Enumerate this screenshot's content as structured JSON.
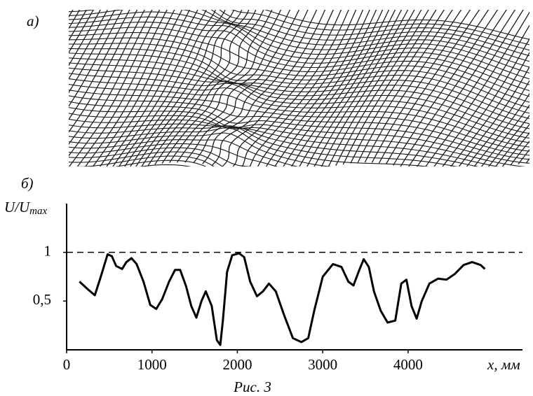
{
  "figure": {
    "panel_a_label": "а)",
    "panel_b_label": "б)",
    "caption": "Рис. 3"
  },
  "chart_data": {
    "type": "line",
    "y_label": {
      "main": "U/U",
      "sub": "max"
    },
    "x_label": "x, мм",
    "xlim": [
      0,
      5340
    ],
    "ylim": [
      0,
      1.5
    ],
    "xticks": [
      0,
      1000,
      2000,
      3000,
      4000
    ],
    "yticks": [
      {
        "value": 0.5,
        "label": "0,5"
      },
      1
    ],
    "reference_line": 1,
    "x": [
      150,
      250,
      330,
      400,
      480,
      530,
      580,
      650,
      700,
      760,
      820,
      900,
      980,
      1050,
      1120,
      1200,
      1270,
      1330,
      1400,
      1460,
      1520,
      1580,
      1630,
      1700,
      1760,
      1800,
      1830,
      1880,
      1940,
      2020,
      2080,
      2150,
      2230,
      2300,
      2370,
      2450,
      2550,
      2650,
      2750,
      2830,
      2900,
      3000,
      3120,
      3220,
      3300,
      3360,
      3420,
      3480,
      3540,
      3600,
      3680,
      3760,
      3850,
      3920,
      3980,
      4040,
      4100,
      4160,
      4250,
      4350,
      4450,
      4550,
      4650,
      4750,
      4850,
      4900
    ],
    "series": [
      {
        "color": "#000000",
        "values": [
          0.7,
          0.62,
          0.56,
          0.75,
          0.98,
          0.96,
          0.86,
          0.83,
          0.9,
          0.94,
          0.88,
          0.7,
          0.46,
          0.42,
          0.52,
          0.7,
          0.82,
          0.82,
          0.65,
          0.45,
          0.33,
          0.5,
          0.6,
          0.45,
          0.1,
          0.05,
          0.3,
          0.8,
          0.97,
          0.99,
          0.95,
          0.7,
          0.55,
          0.6,
          0.68,
          0.6,
          0.35,
          0.12,
          0.08,
          0.12,
          0.4,
          0.75,
          0.88,
          0.85,
          0.7,
          0.66,
          0.8,
          0.93,
          0.85,
          0.6,
          0.4,
          0.28,
          0.3,
          0.68,
          0.72,
          0.45,
          0.32,
          0.5,
          0.68,
          0.73,
          0.72,
          0.78,
          0.87,
          0.9,
          0.87,
          0.83
        ]
      }
    ]
  }
}
